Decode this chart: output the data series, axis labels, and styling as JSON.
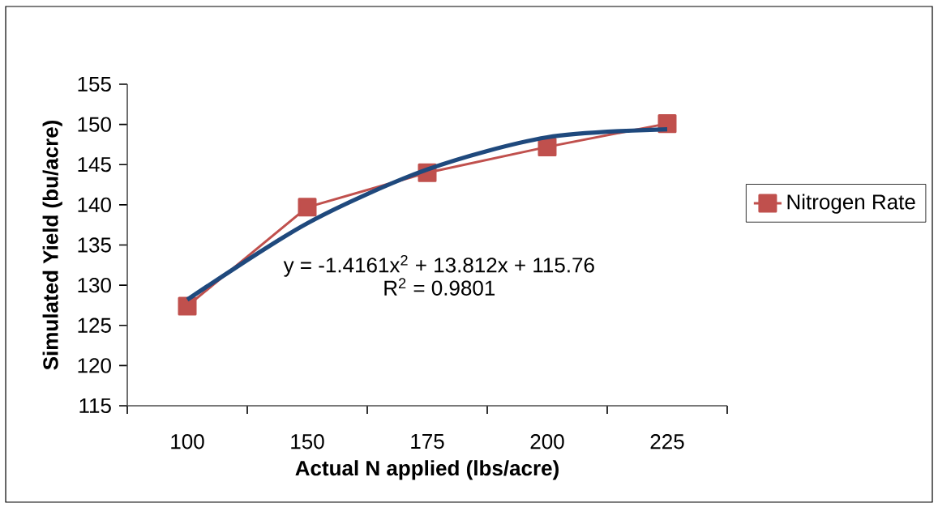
{
  "chart_data": {
    "type": "line",
    "xlabel": "Actual N applied (lbs/acre)",
    "ylabel": "Simulated Yield (bu/acre)",
    "categories": [
      "100",
      "150",
      "175",
      "200",
      "225"
    ],
    "ylim": [
      115,
      155
    ],
    "yticks": [
      115,
      120,
      125,
      130,
      135,
      140,
      145,
      150,
      155
    ],
    "series": [
      {
        "name": "Nitrogen Rate",
        "color": "#c0504d",
        "marker": "square",
        "values": [
          127.4,
          139.7,
          144.0,
          147.2,
          150.1
        ]
      },
      {
        "color": "#1f497d",
        "marker": "none",
        "values": [
          128.2,
          137.7,
          144.4,
          148.4,
          149.4
        ]
      }
    ],
    "annotations": [
      "y = -1.4161x$^{2}$ + 13.812x + 115.76",
      "R$^{2}$ = 0.9801"
    ],
    "legend": "right",
    "grid": false
  }
}
